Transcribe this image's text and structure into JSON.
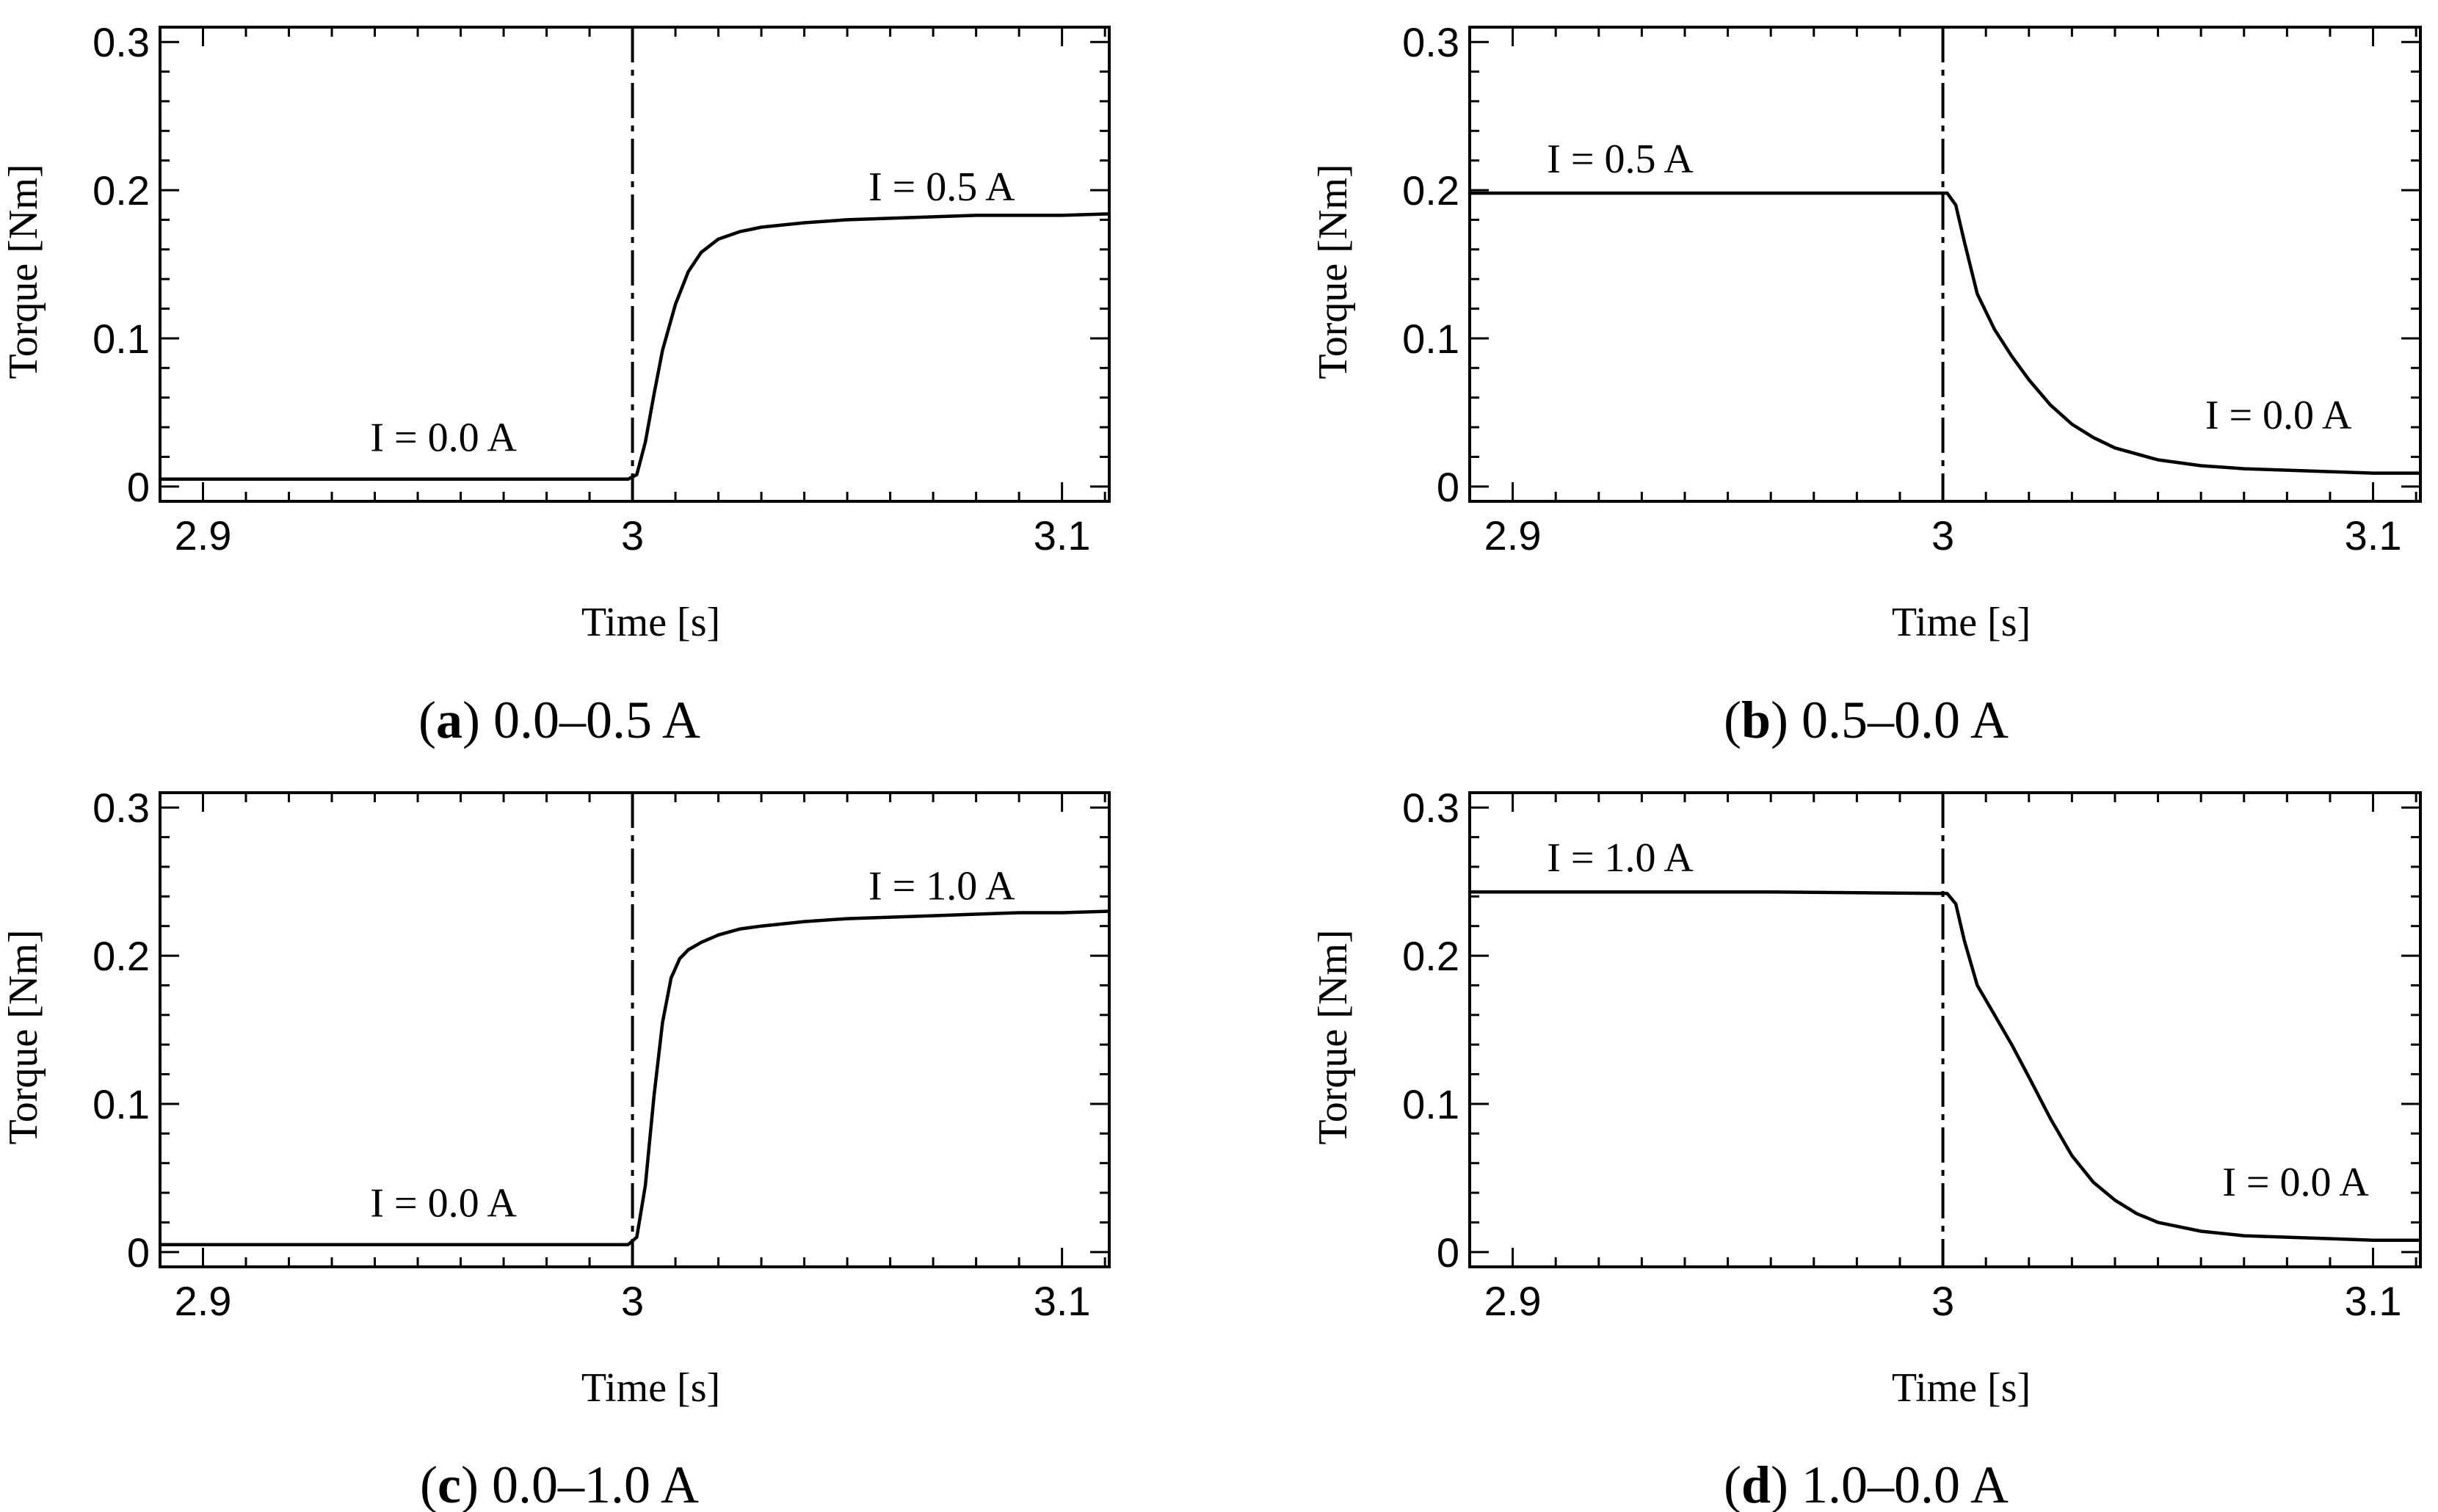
{
  "chart_data": [
    {
      "type": "line",
      "caption_letter": "a",
      "caption_text": "0.0–0.5 A",
      "xlabel": "Time [s]",
      "ylabel": "Torque [Nm]",
      "xlim": [
        2.89,
        3.111
      ],
      "ylim": [
        -0.01,
        0.31
      ],
      "xticks": [
        2.9,
        3.0,
        3.1
      ],
      "xtick_labels": [
        "2.9",
        "3",
        "3.1"
      ],
      "yticks": [
        0,
        0.1,
        0.2,
        0.3
      ],
      "ytick_labels": [
        "0",
        "0.1",
        "0.2",
        "0.3"
      ],
      "switch_time": 3.0,
      "annotations": [
        {
          "text": "I = 0.0 A",
          "x": 2.956,
          "y": 0.024
        },
        {
          "text": "I = 0.5 A",
          "x": 3.072,
          "y": 0.193
        }
      ],
      "series": [
        {
          "x": [
            2.89,
            2.92,
            2.96,
            2.999,
            3.001,
            3.003,
            3.005,
            3.007,
            3.01,
            3.013,
            3.016,
            3.02,
            3.025,
            3.03,
            3.04,
            3.05,
            3.06,
            3.07,
            3.08,
            3.09,
            3.1,
            3.111
          ],
          "y": [
            0.005,
            0.005,
            0.005,
            0.005,
            0.008,
            0.03,
            0.062,
            0.092,
            0.123,
            0.145,
            0.158,
            0.167,
            0.172,
            0.175,
            0.178,
            0.18,
            0.181,
            0.182,
            0.183,
            0.183,
            0.183,
            0.184
          ]
        }
      ]
    },
    {
      "type": "line",
      "caption_letter": "b",
      "caption_text": "0.5–0.0 A",
      "xlabel": "Time [s]",
      "ylabel": "Torque [Nm]",
      "xlim": [
        2.89,
        3.111
      ],
      "ylim": [
        -0.01,
        0.31
      ],
      "xticks": [
        2.9,
        3.0,
        3.1
      ],
      "xtick_labels": [
        "2.9",
        "3",
        "3.1"
      ],
      "yticks": [
        0,
        0.1,
        0.2,
        0.3
      ],
      "ytick_labels": [
        "0",
        "0.1",
        "0.2",
        "0.3"
      ],
      "switch_time": 3.0,
      "annotations": [
        {
          "text": "I = 0.5 A",
          "x": 2.925,
          "y": 0.212
        },
        {
          "text": "I = 0.0 A",
          "x": 3.078,
          "y": 0.039
        }
      ],
      "series": [
        {
          "x": [
            2.89,
            2.92,
            2.96,
            2.999,
            3.001,
            3.003,
            3.005,
            3.008,
            3.012,
            3.016,
            3.02,
            3.025,
            3.03,
            3.035,
            3.04,
            3.05,
            3.06,
            3.07,
            3.08,
            3.09,
            3.1,
            3.111
          ],
          "y": [
            0.198,
            0.198,
            0.198,
            0.198,
            0.198,
            0.19,
            0.165,
            0.13,
            0.106,
            0.088,
            0.072,
            0.055,
            0.042,
            0.033,
            0.026,
            0.018,
            0.014,
            0.012,
            0.011,
            0.01,
            0.009,
            0.009
          ]
        }
      ]
    },
    {
      "type": "line",
      "caption_letter": "c",
      "caption_text": "0.0–1.0 A",
      "xlabel": "Time [s]",
      "ylabel": "Torque [Nm]",
      "xlim": [
        2.89,
        3.111
      ],
      "ylim": [
        -0.01,
        0.31
      ],
      "xticks": [
        2.9,
        3.0,
        3.1
      ],
      "xtick_labels": [
        "2.9",
        "3",
        "3.1"
      ],
      "yticks": [
        0,
        0.1,
        0.2,
        0.3
      ],
      "ytick_labels": [
        "0",
        "0.1",
        "0.2",
        "0.3"
      ],
      "switch_time": 3.0,
      "annotations": [
        {
          "text": "I = 0.0 A",
          "x": 2.956,
          "y": 0.024
        },
        {
          "text": "I = 1.0 A",
          "x": 3.072,
          "y": 0.238
        }
      ],
      "series": [
        {
          "x": [
            2.89,
            2.92,
            2.96,
            2.999,
            3.001,
            3.003,
            3.005,
            3.007,
            3.009,
            3.011,
            3.013,
            3.016,
            3.02,
            3.025,
            3.03,
            3.04,
            3.05,
            3.06,
            3.07,
            3.08,
            3.09,
            3.1,
            3.111
          ],
          "y": [
            0.005,
            0.005,
            0.005,
            0.005,
            0.01,
            0.045,
            0.105,
            0.155,
            0.185,
            0.198,
            0.204,
            0.209,
            0.214,
            0.218,
            0.22,
            0.223,
            0.225,
            0.226,
            0.227,
            0.228,
            0.229,
            0.229,
            0.23
          ]
        }
      ]
    },
    {
      "type": "line",
      "caption_letter": "d",
      "caption_text": "1.0–0.0 A",
      "xlabel": "Time [s]",
      "ylabel": "Torque [Nm]",
      "xlim": [
        2.89,
        3.111
      ],
      "ylim": [
        -0.01,
        0.31
      ],
      "xticks": [
        2.9,
        3.0,
        3.1
      ],
      "xtick_labels": [
        "2.9",
        "3",
        "3.1"
      ],
      "yticks": [
        0,
        0.1,
        0.2,
        0.3
      ],
      "ytick_labels": [
        "0",
        "0.1",
        "0.2",
        "0.3"
      ],
      "switch_time": 3.0,
      "annotations": [
        {
          "text": "I = 1.0 A",
          "x": 2.925,
          "y": 0.257
        },
        {
          "text": "I = 0.0 A",
          "x": 3.082,
          "y": 0.038
        }
      ],
      "series": [
        {
          "x": [
            2.89,
            2.92,
            2.96,
            2.999,
            3.001,
            3.003,
            3.005,
            3.008,
            3.012,
            3.016,
            3.02,
            3.025,
            3.03,
            3.035,
            3.04,
            3.045,
            3.05,
            3.06,
            3.07,
            3.08,
            3.09,
            3.1,
            3.111
          ],
          "y": [
            0.243,
            0.243,
            0.243,
            0.242,
            0.242,
            0.235,
            0.21,
            0.18,
            0.16,
            0.14,
            0.118,
            0.09,
            0.065,
            0.047,
            0.035,
            0.026,
            0.02,
            0.014,
            0.011,
            0.01,
            0.009,
            0.008,
            0.008
          ]
        }
      ]
    }
  ]
}
